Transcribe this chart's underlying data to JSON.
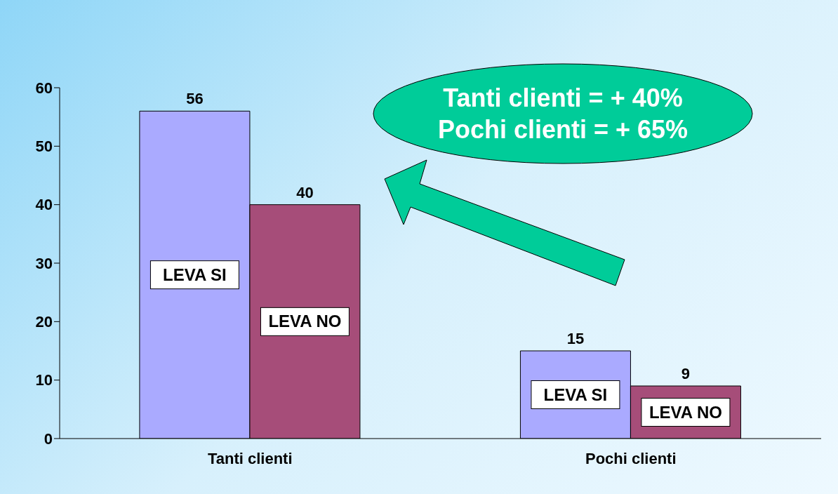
{
  "chart_data": {
    "type": "bar",
    "categories": [
      "Tanti clienti",
      "Pochi clienti"
    ],
    "series": [
      {
        "name": "LEVA SI",
        "color": "#aaaaff",
        "values": [
          56,
          15
        ]
      },
      {
        "name": "LEVA NO",
        "color": "#a64d79",
        "values": [
          40,
          9
        ]
      }
    ],
    "ylim": [
      0,
      60
    ],
    "yticks": [
      0,
      10,
      20,
      30,
      40,
      50,
      60
    ],
    "data_labels": true,
    "grid": false,
    "legend": false,
    "annotations": [
      "Tanti clienti = + 40%",
      "Pochi clienti = + 65%"
    ]
  }
}
